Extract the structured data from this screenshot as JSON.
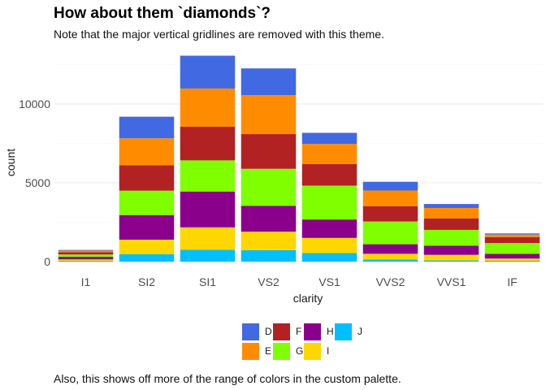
{
  "title": "How about them `diamonds`?",
  "subtitle": "Note that the major vertical gridlines are removed with this theme.",
  "caption": "Also, this shows off more of the range of colors in the custom palette.",
  "chart_data": {
    "type": "bar",
    "stacked": true,
    "xlabel": "clarity",
    "ylabel": "count",
    "ylim": [
      0,
      14000
    ],
    "yticks": [
      0,
      5000,
      10000
    ],
    "ytick_labels": [
      "0",
      "5000",
      "10000"
    ],
    "vertical_gridlines": false,
    "legend_position": "bottom",
    "categories": [
      "I1",
      "SI2",
      "SI1",
      "VS2",
      "VS1",
      "VVS2",
      "VVS1",
      "IF"
    ],
    "series": [
      {
        "name": "D",
        "color": "#4169E1",
        "values": [
          42,
          1370,
          2083,
          1697,
          705,
          553,
          252,
          73
        ]
      },
      {
        "name": "E",
        "color": "#FF8C00",
        "values": [
          102,
          1713,
          2426,
          2470,
          1281,
          991,
          656,
          158
        ]
      },
      {
        "name": "F",
        "color": "#B22222",
        "values": [
          143,
          1609,
          2131,
          2201,
          1364,
          975,
          734,
          385
        ]
      },
      {
        "name": "G",
        "color": "#7FFF00",
        "values": [
          150,
          1548,
          1976,
          2347,
          2148,
          1443,
          999,
          681
        ]
      },
      {
        "name": "H",
        "color": "#8B008B",
        "values": [
          162,
          1563,
          2275,
          1643,
          1169,
          608,
          585,
          299
        ]
      },
      {
        "name": "I",
        "color": "#FFD700",
        "values": [
          92,
          912,
          1424,
          1169,
          962,
          365,
          355,
          143
        ]
      },
      {
        "name": "J",
        "color": "#00BFFF",
        "values": [
          50,
          479,
          750,
          731,
          542,
          131,
          74,
          51
        ]
      }
    ]
  }
}
